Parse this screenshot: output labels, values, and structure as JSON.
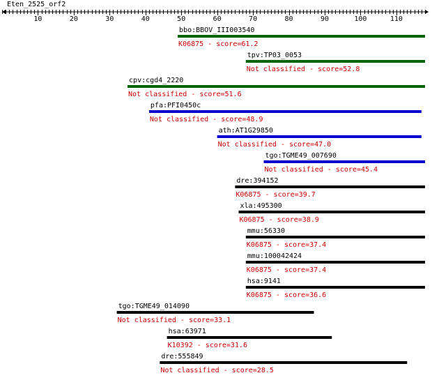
{
  "query": {
    "name": "Eten_2525_orf2",
    "length": 118
  },
  "ruler": {
    "ticks": [
      10,
      20,
      30,
      40,
      50,
      60,
      70,
      80,
      90,
      100,
      110
    ]
  },
  "colors": {
    "green": "#006400",
    "blue": "#0000cc",
    "black": "#000000",
    "annotation": "#cc0000",
    "text": "#000000"
  },
  "hits": [
    {
      "gene": "bbo:BBOV_III003540",
      "annotation": "K06875 - score=61.2",
      "start": 49,
      "end": 118,
      "color": "green"
    },
    {
      "gene": "tpv:TP03_0053",
      "annotation": "Not classified - score=52.8",
      "start": 68,
      "end": 118,
      "color": "green"
    },
    {
      "gene": "cpv:cgd4_2220",
      "annotation": "Not classified - score=51.6",
      "start": 35,
      "end": 118,
      "color": "green"
    },
    {
      "gene": "pfa:PFI0450c",
      "annotation": "Not classified - score=48.9",
      "start": 41,
      "end": 117,
      "color": "blue"
    },
    {
      "gene": "ath:AT1G29850",
      "annotation": "Not classified - score=47.0",
      "start": 60,
      "end": 117,
      "color": "blue"
    },
    {
      "gene": "tgo:TGME49_007690",
      "annotation": "Not classified - score=45.4",
      "start": 73,
      "end": 118,
      "color": "blue"
    },
    {
      "gene": "dre:394152",
      "annotation": "K06875 - score=39.7",
      "start": 65,
      "end": 118,
      "color": "black"
    },
    {
      "gene": "xla:495300",
      "annotation": "K06875 - score=38.9",
      "start": 66,
      "end": 118,
      "color": "black"
    },
    {
      "gene": "mmu:56330",
      "annotation": "K06875 - score=37.4",
      "start": 68,
      "end": 118,
      "color": "black"
    },
    {
      "gene": "mmu:100042424",
      "annotation": "K06875 - score=37.4",
      "start": 68,
      "end": 118,
      "color": "black"
    },
    {
      "gene": "hsa:9141",
      "annotation": "K06875 - score=36.6",
      "start": 68,
      "end": 118,
      "color": "black"
    },
    {
      "gene": "tgo:TGME49_014090",
      "annotation": "Not classified - score=33.1",
      "start": 32,
      "end": 87,
      "color": "black"
    },
    {
      "gene": "hsa:63971",
      "annotation": "K10392 - score=31.6",
      "start": 46,
      "end": 92,
      "color": "black"
    },
    {
      "gene": "dre:555849",
      "annotation": "Not classified - score=28.5",
      "start": 44,
      "end": 113,
      "color": "black"
    }
  ]
}
